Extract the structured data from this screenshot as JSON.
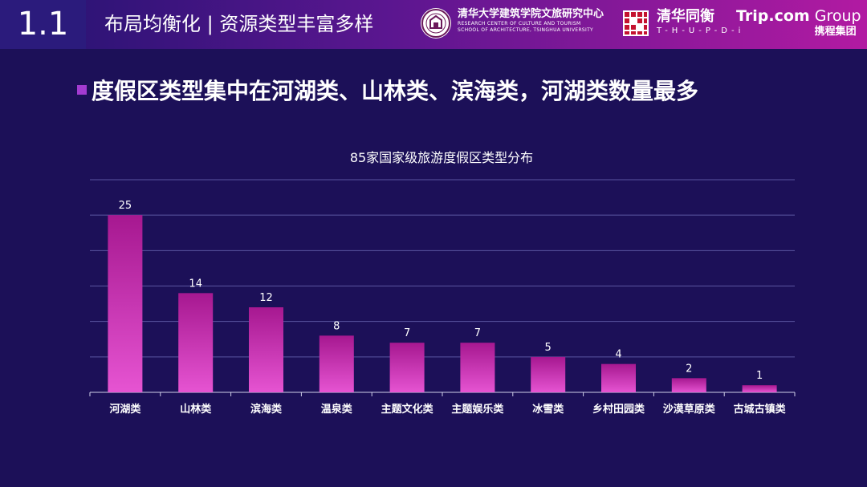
{
  "header": {
    "section_number": "1.1",
    "section_title": "布局均衡化 | 资源类型丰富多样",
    "institute_cn": "清华大学建筑学院文旅研究中心",
    "institute_en_1": "RESEARCH CENTER OF CULTURE AND TOURISM",
    "institute_en_2": "SCHOOL OF ARCHITECTURE, TSINGHUA UNIVERSITY",
    "thupdi_cn": "清华同衡",
    "thupdi_en": "T-H-U-P-D-i",
    "trip_en_bold": "Trip.com",
    "trip_en_light": " Group",
    "trip_cn": "携程集团"
  },
  "headline": "度假区类型集中在河湖类、山林类、滨海类，河湖类数量最多",
  "colors": {
    "background": "#1c1058",
    "bar_top": "#a61890",
    "bar_bottom": "#e654d2",
    "grid": "#5a55a0",
    "axis": "#cfcfe8"
  },
  "chart_data": {
    "type": "bar",
    "title": "85家国家级旅游度假区类型分布",
    "categories": [
      "河湖类",
      "山林类",
      "滨海类",
      "温泉类",
      "主题文化类",
      "主题娱乐类",
      "冰雪类",
      "乡村田园类",
      "沙漠草原类",
      "古城古镇类"
    ],
    "values": [
      25,
      14,
      12,
      8,
      7,
      7,
      5,
      4,
      2,
      1
    ],
    "ylim": [
      0,
      30
    ],
    "grid": true,
    "show_y_tick_labels": false,
    "data_labels": true
  }
}
